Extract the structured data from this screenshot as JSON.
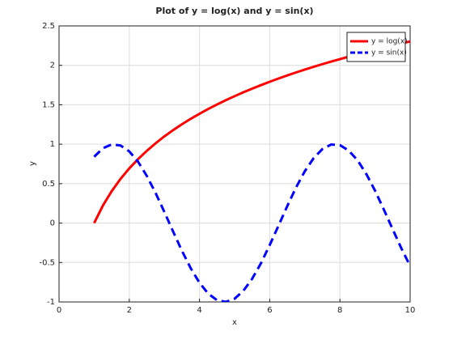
{
  "chart_data": {
    "type": "line",
    "title": "Plot of y = log(x) and y = sin(x)",
    "x_label": "x",
    "y_label": "y",
    "x": [
      1,
      1.25,
      1.5,
      1.75,
      2,
      2.25,
      2.5,
      2.75,
      3,
      3.25,
      3.5,
      3.75,
      4,
      4.25,
      4.5,
      4.75,
      5,
      5.25,
      5.5,
      5.75,
      6,
      6.25,
      6.5,
      6.75,
      7,
      7.25,
      7.5,
      7.75,
      8,
      8.25,
      8.5,
      8.75,
      9,
      9.25,
      9.5,
      9.75,
      10
    ],
    "series": [
      {
        "name": "y = log(x)",
        "color": "#ff0000",
        "dash": "solid",
        "values": [
          0,
          0.223,
          0.405,
          0.56,
          0.693,
          0.811,
          0.916,
          1.012,
          1.099,
          1.179,
          1.253,
          1.322,
          1.386,
          1.447,
          1.504,
          1.558,
          1.609,
          1.658,
          1.705,
          1.749,
          1.792,
          1.833,
          1.872,
          1.91,
          1.946,
          1.981,
          2.015,
          2.048,
          2.079,
          2.11,
          2.14,
          2.169,
          2.197,
          2.225,
          2.251,
          2.277,
          2.303
        ]
      },
      {
        "name": "y = sin(x)",
        "color": "#0000ff",
        "dash": "dashed",
        "values": [
          0.841,
          0.949,
          0.997,
          0.984,
          0.909,
          0.778,
          0.598,
          0.382,
          0.141,
          -0.108,
          -0.351,
          -0.572,
          -0.757,
          -0.895,
          -0.978,
          -0.999,
          -0.959,
          -0.859,
          -0.706,
          -0.51,
          -0.279,
          -0.033,
          0.215,
          0.451,
          0.657,
          0.823,
          0.938,
          0.996,
          0.989,
          0.919,
          0.798,
          0.624,
          0.412,
          0.173,
          -0.075,
          -0.32,
          -0.544
        ]
      }
    ],
    "xlim": [
      0,
      10
    ],
    "xticks": [
      0,
      2,
      4,
      6,
      8,
      10
    ],
    "ylim": [
      -1,
      2.5
    ],
    "yticks": [
      -1,
      -0.5,
      0,
      0.5,
      1,
      1.5,
      2,
      2.5
    ],
    "grid": true,
    "legend": "upper right"
  }
}
